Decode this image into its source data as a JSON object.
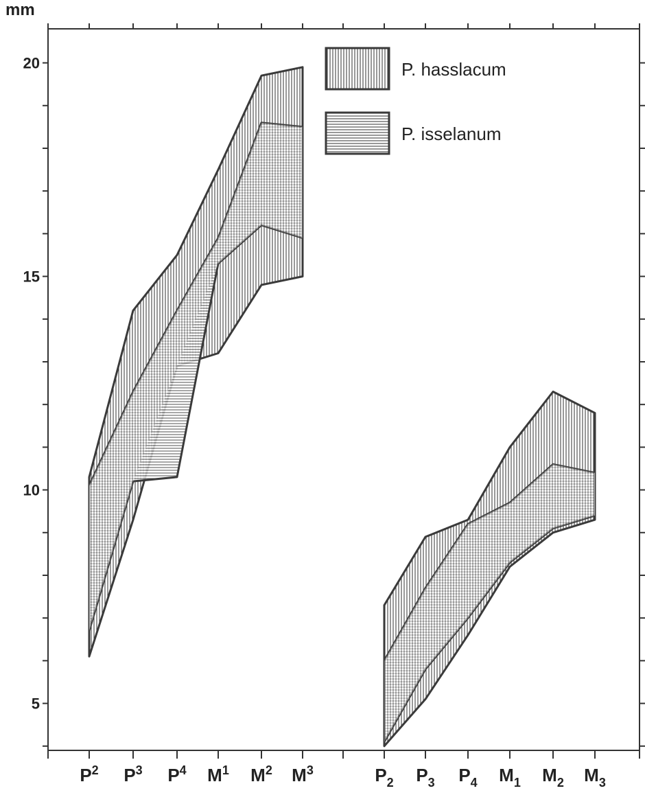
{
  "chart_data": {
    "type": "area",
    "title": "",
    "xlabel": "",
    "ylabel": "",
    "y_unit_label": "mm",
    "ylim": [
      3.9,
      20.3
    ],
    "y_ticks": [
      {
        "value": 20,
        "label": "20"
      },
      {
        "value": 15,
        "label": "15"
      },
      {
        "value": 10,
        "label": "10"
      },
      {
        "value": 5,
        "label": "5"
      }
    ],
    "legend": {
      "placement": "top-right",
      "entries": [
        {
          "name": "P. hasslacum",
          "pattern": "vertical"
        },
        {
          "name": "P. isselanum",
          "pattern": "horizontal"
        }
      ]
    },
    "panels": [
      {
        "id": "upper",
        "categories": [
          {
            "base": "P",
            "index": "2",
            "pos": "sup"
          },
          {
            "base": "P",
            "index": "3",
            "pos": "sup"
          },
          {
            "base": "P",
            "index": "4",
            "pos": "sup"
          },
          {
            "base": "M",
            "index": "1",
            "pos": "sup"
          },
          {
            "base": "M",
            "index": "2",
            "pos": "sup"
          },
          {
            "base": "M",
            "index": "3",
            "pos": "sup"
          }
        ],
        "series": [
          {
            "name": "P. hasslacum",
            "max": [
              10.3,
              14.2,
              15.5,
              17.5,
              19.7,
              19.9
            ],
            "min": [
              6.1,
              9.3,
              12.9,
              13.2,
              14.8,
              15.0
            ]
          },
          {
            "name": "P. isselanum",
            "max": [
              10.1,
              12.3,
              14.2,
              15.9,
              18.6,
              18.5
            ],
            "min": [
              6.7,
              10.2,
              10.3,
              15.3,
              16.2,
              15.9
            ]
          }
        ]
      },
      {
        "id": "lower",
        "categories": [
          {
            "base": "P",
            "index": "2",
            "pos": "sub"
          },
          {
            "base": "P",
            "index": "3",
            "pos": "sub"
          },
          {
            "base": "P",
            "index": "4",
            "pos": "sub"
          },
          {
            "base": "M",
            "index": "1",
            "pos": "sub"
          },
          {
            "base": "M",
            "index": "2",
            "pos": "sub"
          },
          {
            "base": "M",
            "index": "3",
            "pos": "sub"
          }
        ],
        "series": [
          {
            "name": "P. hasslacum",
            "max": [
              7.3,
              8.9,
              9.3,
              11.0,
              12.3,
              11.8
            ],
            "min": [
              4.0,
              5.1,
              6.6,
              8.2,
              9.0,
              9.3
            ]
          },
          {
            "name": "P. isselanum",
            "max": [
              6.0,
              7.7,
              9.2,
              9.7,
              10.6,
              10.4
            ],
            "min": [
              4.1,
              5.8,
              7.0,
              8.3,
              9.1,
              9.4
            ]
          }
        ]
      }
    ]
  }
}
